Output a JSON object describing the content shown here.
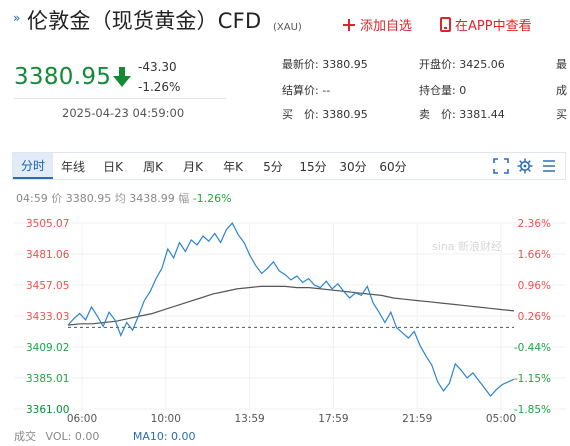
{
  "header": {
    "title": "伦敦金（现货黄金）CFD",
    "subtitle": "(XAU)",
    "add_watchlist": "添加自选",
    "view_in_app": "在APP中查看"
  },
  "quote": {
    "price": "3380.95",
    "change": "-43.30",
    "change_pct": "-1.26%",
    "datetime": "2025-04-23 04:59:00",
    "fields": {
      "latest_label": "最新价:",
      "latest": "3380.95",
      "settle_label": "结算价:",
      "settle": "--",
      "buy_label": "买　价:",
      "buy": "3380.95",
      "open_label": "开盘价:",
      "open": "3425.06",
      "hold_label": "持仓量:",
      "hold": "0",
      "sell_label": "卖　价:",
      "sell": "3381.44",
      "cut1": "最",
      "cut2": "成",
      "cut3": "买"
    }
  },
  "tabs": [
    "分时",
    "年线",
    "日K",
    "周K",
    "月K",
    "年K",
    "5分",
    "15分",
    "30分",
    "60分"
  ],
  "info_line": {
    "time": "04:59",
    "price_label": "价",
    "price": "3380.95",
    "avg_label": "均",
    "avg": "3438.99",
    "range_label": "幅",
    "range": "-1.26%"
  },
  "watermark": "sina 新浪财经",
  "chart_data": {
    "type": "line",
    "y_left_ticks": [
      "3505.07",
      "3481.06",
      "3457.05",
      "3433.03",
      "3409.02",
      "3385.01",
      "3361.00"
    ],
    "y_right_ticks": [
      "2.36%",
      "1.66%",
      "0.96%",
      "0.26%",
      "-0.44%",
      "-1.15%",
      "-1.85%"
    ],
    "ylim": [
      3361.0,
      3505.07
    ],
    "prev_close": 3424.25,
    "x_tick_labels": [
      "06:00",
      "10:00",
      "13:59",
      "17:59",
      "21:59",
      "05:00"
    ],
    "series": [
      {
        "values": [
          3426,
          3431,
          3435,
          3430,
          3440,
          3433,
          3425,
          3436,
          3430,
          3418,
          3428,
          3422,
          3433,
          3445,
          3452,
          3462,
          3470,
          3485,
          3478,
          3490,
          3483,
          3492,
          3488,
          3495,
          3491,
          3497,
          3490,
          3500,
          3505,
          3496,
          3490,
          3480,
          3472,
          3466,
          3470,
          3475,
          3468,
          3465,
          3461,
          3464,
          3459,
          3462,
          3457,
          3455,
          3460,
          3454,
          3458,
          3452,
          3447,
          3451,
          3449,
          3456,
          3443,
          3436,
          3428,
          3436,
          3424,
          3420,
          3416,
          3421,
          3410,
          3402,
          3395,
          3382,
          3375,
          3381,
          3396,
          3391,
          3385,
          3389,
          3383,
          3377,
          3371,
          3376,
          3380,
          3382,
          3384
        ]
      },
      {
        "values": [
          3426,
          3427,
          3427,
          3428,
          3429,
          3431,
          3433,
          3435,
          3438,
          3441,
          3444,
          3447,
          3450,
          3452,
          3454,
          3455,
          3456,
          3456,
          3456,
          3455,
          3455,
          3454,
          3453,
          3452,
          3451,
          3450,
          3449,
          3447,
          3446,
          3445,
          3444,
          3443,
          3442,
          3441,
          3440,
          3439,
          3438,
          3437
        ]
      }
    ]
  },
  "bottom": {
    "volume_label": "成交",
    "vol": "VOL: 0.00",
    "ma": "MA10: 0.00"
  },
  "colors": {
    "up": "#f0504d",
    "down": "#21a544",
    "line": "#2b84d1",
    "avg": "#555555",
    "accent": "#1a5fb4"
  }
}
